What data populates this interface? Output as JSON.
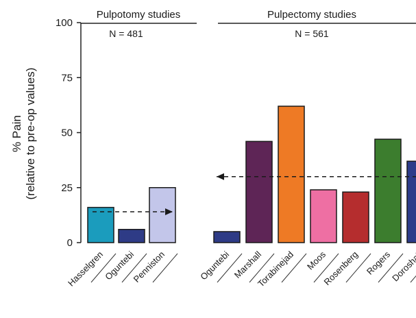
{
  "chart_data": {
    "type": "bar",
    "ylabel_line1": "% Pain",
    "ylabel_line2": "(relative to pre-op values)",
    "ylim": [
      0,
      100
    ],
    "yticks": [
      "0",
      "25",
      "50",
      "75",
      "100"
    ],
    "groups": [
      {
        "title": "Pulpotomy studies",
        "n_label": "N = 481",
        "mean_line": 14,
        "bars": [
          {
            "category": "Hasselgren",
            "value": 16,
            "color": "#1b9cbd"
          },
          {
            "category": "Oguntebi",
            "value": 6,
            "color": "#2e3b86"
          },
          {
            "category": "Penniston",
            "value": 25,
            "color": "#c3c6ea"
          }
        ]
      },
      {
        "title": "Pulpectomy studies",
        "n_label": "N = 561",
        "mean_line": 30,
        "bars": [
          {
            "category": "Oguntebi",
            "value": 5,
            "color": "#2e3b86"
          },
          {
            "category": "Marshall",
            "value": 46,
            "color": "#5e2556"
          },
          {
            "category": "Torabinejad",
            "value": 62,
            "color": "#ee7a25"
          },
          {
            "category": "Moos",
            "value": 24,
            "color": "#ee6fa3"
          },
          {
            "category": "Rosenberg",
            "value": 23,
            "color": "#b52d2e"
          },
          {
            "category": "Rogers",
            "value": 47,
            "color": "#3c7d2e"
          },
          {
            "category": "Doroshak",
            "value": 37,
            "color": "#2c3c8a"
          }
        ]
      }
    ]
  }
}
